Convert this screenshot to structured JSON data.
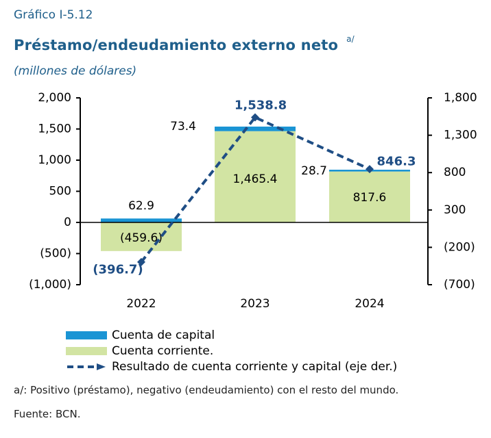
{
  "header": {
    "number": "Gráfico I-5.12",
    "title": "Préstamo/endeudamiento externo neto",
    "title_note": "a/",
    "units": "(millones de dólares)"
  },
  "footnote": "a/: Positivo (préstamo), negativo (endeudamiento) con el resto del mundo.",
  "source": "Fuente: BCN.",
  "colors": {
    "capital": "#1a94d4",
    "corriente": "#d2e4a3",
    "resultado": "#1f4e85",
    "axis": "#000000"
  },
  "chart_data": {
    "type": "bar",
    "stacked": true,
    "categories": [
      "2022",
      "2023",
      "2024"
    ],
    "y_left": {
      "min": -1000,
      "max": 2000,
      "ticks": [
        -1000,
        -500,
        0,
        500,
        1000,
        1500,
        2000
      ],
      "tick_labels": [
        "(1,000)",
        "(500)",
        "0",
        "500",
        "1,000",
        "1,500",
        "2,000"
      ]
    },
    "y_right": {
      "min": -700,
      "max": 1800,
      "ticks": [
        -700,
        -200,
        300,
        800,
        1300,
        1800
      ],
      "tick_labels": [
        "(700)",
        "(200)",
        "300",
        "800",
        "1,300",
        "1,800"
      ]
    },
    "series": [
      {
        "name": "Cuenta de capital",
        "type": "bar",
        "axis": "left",
        "values": [
          62.9,
          73.4,
          28.7
        ],
        "labels": [
          "62.9",
          "73.4",
          "28.7"
        ]
      },
      {
        "name": "Cuenta corriente.",
        "type": "bar",
        "axis": "left",
        "values": [
          -459.6,
          1465.4,
          817.6
        ],
        "labels": [
          "(459.6)",
          "1,465.4",
          "817.6"
        ]
      },
      {
        "name": "Resultado de cuenta corriente y capital (eje der.)",
        "type": "line",
        "axis": "right",
        "values": [
          -396.7,
          1538.8,
          846.3
        ],
        "labels": [
          "(396.7)",
          "1,538.8",
          "846.3"
        ]
      }
    ],
    "grid": false,
    "legend_position": "bottom-left"
  }
}
